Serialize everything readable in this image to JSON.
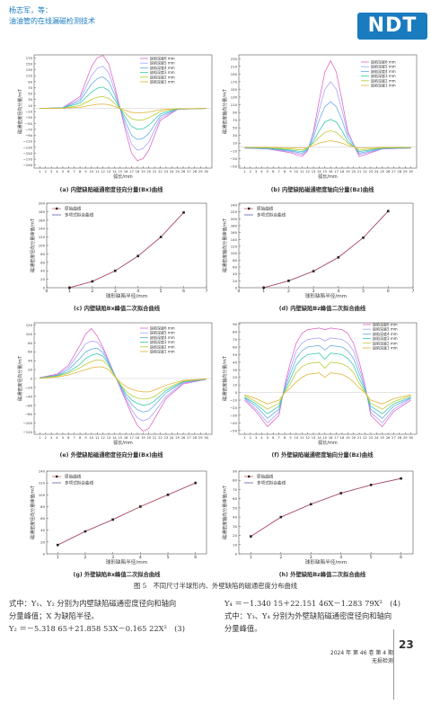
{
  "header": {
    "authors": "杨志军，等：",
    "title": "油油管的在线漏磁检测技术",
    "logo": "NDT"
  },
  "colors": {
    "brand": "#1a7bbf",
    "s6": "#e060c0",
    "s5": "#a49cff",
    "s4": "#5fa8e8",
    "s3": "#2ec8a8",
    "s2": "#b8c82a",
    "s1": "#e0b030",
    "single": "#cc4a4a",
    "fit": "#4444aa"
  },
  "legend_depth": [
    "缺陷深度6 mm",
    "缺陷深度5 mm",
    "缺陷深度4 mm",
    "缺陷深度3 mm",
    "缺陷深度2 mm",
    "缺陷深度1 mm"
  ],
  "legend_fit": [
    "原始曲线",
    "多项式拟合曲线"
  ],
  "panels": {
    "a": {
      "caption": "(a) 内壁缺陷磁通密度径向分量(Bx)曲线",
      "ylabel": "磁通密度径向分量/mT",
      "xlabel": "弧长/mm",
      "yticks": [
        "170",
        "150",
        "130",
        "110",
        "90",
        "70",
        "50",
        "30",
        "10",
        "−10",
        "−30",
        "−50",
        "−70",
        "−90",
        "−110",
        "−130",
        "−150",
        "−170",
        "−190"
      ],
      "xticks": [
        "1",
        "2",
        "3",
        "4",
        "5",
        "6",
        "7",
        "8",
        "9",
        "10",
        "11",
        "12",
        "13",
        "14",
        "15",
        "16",
        "17",
        "18",
        "19",
        "20",
        "21",
        "22",
        "23",
        "24",
        "25",
        "26",
        "27",
        "28",
        "29",
        "30"
      ]
    },
    "b": {
      "caption": "(b) 内壁缺陷磁通密度轴向分量(Bz)曲线",
      "ylabel": "磁通密度轴向分量/mT",
      "xlabel": "弧长/mm",
      "yticks": [
        "230",
        "210",
        "190",
        "170",
        "150",
        "130",
        "110",
        "90",
        "70",
        "50",
        "30",
        "10",
        "−10",
        "−30",
        "−50"
      ],
      "xticks": [
        "1",
        "2",
        "3",
        "4",
        "5",
        "6",
        "7",
        "8",
        "9",
        "10",
        "11",
        "12",
        "13",
        "14",
        "15",
        "16",
        "17",
        "18",
        "19",
        "20",
        "21",
        "22",
        "23",
        "24",
        "25",
        "26",
        "27",
        "28",
        "29",
        "30"
      ]
    },
    "c": {
      "caption": "(c) 内壁缺陷Bx峰值二次拟合曲线",
      "ylabel": "磁通密度径向分量峰值/mT",
      "xlabel": "球形缺陷半径/mm",
      "yticks": [
        "0",
        "20",
        "40",
        "60",
        "80",
        "100",
        "120",
        "140",
        "160",
        "180",
        "200"
      ],
      "xticks": [
        "0",
        "1",
        "2",
        "3",
        "4",
        "5",
        "6",
        "7"
      ]
    },
    "d": {
      "caption": "(d) 内壁缺陷Bz峰值二次拟合曲线",
      "ylabel": "磁通密度轴向分量峰值/mT",
      "xlabel": "球形缺陷半径/mm",
      "yticks": [
        "0",
        "20",
        "40",
        "60",
        "80",
        "100",
        "120",
        "140",
        "160",
        "180",
        "200",
        "220",
        "240"
      ],
      "xticks": [
        "0",
        "1",
        "2",
        "3",
        "4",
        "5",
        "6",
        "7"
      ]
    },
    "e": {
      "caption": "(e) 外壁缺陷磁通密度径向分量(Bx)曲线",
      "ylabel": "磁通密度径向分量/mT",
      "xlabel": "弧长/mm",
      "yticks": [
        "120",
        "100",
        "80",
        "60",
        "40",
        "20",
        "0",
        "−20",
        "−40",
        "−60",
        "−80",
        "−100",
        "−120"
      ],
      "xticks": [
        "1",
        "2",
        "3",
        "4",
        "5",
        "6",
        "7",
        "8",
        "9",
        "10",
        "11",
        "12",
        "13",
        "14",
        "15",
        "16",
        "17",
        "18",
        "19",
        "20",
        "21",
        "22",
        "23",
        "24",
        "25",
        "26",
        "27",
        "28",
        "29",
        "30"
      ]
    },
    "f": {
      "caption": "(f) 外壁缺陷磁通密度轴向分量(Bz)曲线",
      "ylabel": "磁通密度轴向分量/mT",
      "xlabel": "弧长/mm",
      "yticks": [
        "90",
        "80",
        "70",
        "60",
        "50",
        "40",
        "30",
        "20",
        "10",
        "0",
        "−10",
        "−20",
        "−30",
        "−40",
        "−50"
      ],
      "xticks": [
        "1",
        "2",
        "3",
        "4",
        "5",
        "6",
        "7",
        "8",
        "9",
        "10",
        "11",
        "12",
        "13",
        "14",
        "15",
        "16",
        "17",
        "18",
        "19",
        "20",
        "21",
        "22",
        "23",
        "24",
        "25",
        "26",
        "27",
        "28",
        "29",
        "30"
      ]
    },
    "g": {
      "caption": "(g) 外壁缺陷Bx峰值二次拟合曲线",
      "ylabel": "磁通密度径向分量峰值/mT",
      "xlabel": "球形缺陷半径/mm",
      "yticks": [
        "0",
        "20",
        "40",
        "60",
        "80",
        "100",
        "120",
        "140"
      ],
      "xticks": [
        "1",
        "2",
        "3",
        "4",
        "5",
        "6"
      ]
    },
    "h": {
      "caption": "(h) 外壁缺陷Bz峰值二次拟合曲线",
      "ylabel": "磁通密度轴向分量峰值/mT",
      "xlabel": "球形缺陷半径/mm",
      "yticks": [
        "0",
        "10",
        "20",
        "30",
        "40",
        "50",
        "60",
        "70",
        "80",
        "90"
      ],
      "xticks": [
        "1",
        "2",
        "3",
        "4",
        "5",
        "6"
      ]
    }
  },
  "chart_data": [
    {
      "type": "line",
      "x": [
        1,
        5,
        8,
        10,
        11,
        12,
        13,
        14,
        15,
        16,
        17,
        18,
        19,
        20,
        22,
        25,
        30
      ],
      "series": [
        {
          "name": "缺陷深度6 mm",
          "values": [
            0,
            3,
            40,
            140,
            170,
            178,
            150,
            80,
            0,
            -80,
            -150,
            -175,
            -168,
            -140,
            -40,
            -3,
            0
          ]
        },
        {
          "name": "缺陷深度5 mm",
          "values": [
            0,
            3,
            32,
            110,
            135,
            142,
            120,
            64,
            0,
            -64,
            -120,
            -140,
            -134,
            -112,
            -32,
            -3,
            0
          ]
        },
        {
          "name": "缺陷深度4 mm",
          "values": [
            0,
            2,
            25,
            82,
            100,
            106,
            90,
            48,
            0,
            -48,
            -90,
            -104,
            -100,
            -84,
            -25,
            -2,
            0
          ]
        },
        {
          "name": "缺陷深度3 mm",
          "values": [
            0,
            2,
            18,
            55,
            68,
            72,
            60,
            32,
            0,
            -32,
            -60,
            -70,
            -68,
            -56,
            -18,
            -2,
            0
          ]
        },
        {
          "name": "缺陷深度2 mm",
          "values": [
            0,
            1,
            10,
            30,
            38,
            40,
            34,
            18,
            0,
            -18,
            -34,
            -39,
            -38,
            -31,
            -10,
            -1,
            0
          ]
        },
        {
          "name": "缺陷深度1 mm",
          "values": [
            0,
            1,
            4,
            11,
            14,
            15,
            13,
            7,
            0,
            -7,
            -13,
            -15,
            -14,
            -12,
            -4,
            -1,
            0
          ]
        }
      ]
    },
    {
      "type": "line",
      "x": [
        1,
        5,
        9,
        11,
        12,
        13,
        14,
        15,
        16,
        17,
        18,
        19,
        21,
        25,
        30
      ],
      "series": [
        {
          "name": "缺陷深度6 mm",
          "values": [
            -3,
            -5,
            -15,
            -25,
            -10,
            40,
            120,
            195,
            225,
            195,
            120,
            40,
            -25,
            -5,
            -3
          ]
        },
        {
          "name": "缺陷深度5 mm",
          "values": [
            -3,
            -5,
            -12,
            -20,
            -8,
            35,
            95,
            150,
            170,
            150,
            95,
            35,
            -20,
            -5,
            -3
          ]
        },
        {
          "name": "缺陷深度4 mm",
          "values": [
            -2,
            -4,
            -10,
            -16,
            -6,
            25,
            70,
            105,
            118,
            105,
            70,
            25,
            -16,
            -4,
            -2
          ]
        },
        {
          "name": "缺陷深度3 mm",
          "values": [
            -2,
            -3,
            -8,
            -12,
            -4,
            15,
            42,
            65,
            72,
            65,
            42,
            15,
            -12,
            -3,
            -2
          ]
        },
        {
          "name": "缺陷深度2 mm",
          "values": [
            -1,
            -2,
            -5,
            -8,
            -2,
            10,
            25,
            38,
            42,
            38,
            25,
            10,
            -8,
            -2,
            -1
          ]
        },
        {
          "name": "缺陷深度1 mm",
          "values": [
            -1,
            -1,
            -2,
            -3,
            -1,
            4,
            10,
            14,
            16,
            14,
            10,
            4,
            -3,
            -1,
            -1
          ]
        }
      ]
    },
    {
      "type": "line",
      "x": [
        1,
        2,
        3,
        4,
        5,
        6
      ],
      "series": [
        {
          "name": "原始曲线",
          "values": [
            0,
            15,
            40,
            75,
            120,
            178
          ]
        },
        {
          "name": "多项式拟合曲线",
          "values": [
            0,
            15,
            40,
            75,
            120,
            178
          ]
        }
      ]
    },
    {
      "type": "line",
      "x": [
        1,
        2,
        3,
        4,
        5,
        6
      ],
      "series": [
        {
          "name": "原始曲线",
          "values": [
            0,
            20,
            48,
            88,
            145,
            222
          ]
        },
        {
          "name": "多项式拟合曲线",
          "values": [
            0,
            20,
            48,
            88,
            145,
            222
          ]
        }
      ]
    },
    {
      "type": "line",
      "x": [
        1,
        4,
        6,
        8,
        9,
        10,
        11,
        12,
        13,
        14,
        15,
        16,
        17,
        18,
        19,
        20,
        21,
        23,
        26,
        30
      ],
      "series": [
        {
          "name": "缺陷深度6 mm",
          "values": [
            2,
            10,
            30,
            75,
            100,
            112,
            95,
            70,
            40,
            10,
            -20,
            -50,
            -80,
            -105,
            -118,
            -112,
            -90,
            -45,
            -12,
            -2
          ]
        },
        {
          "name": "缺陷深度5 mm",
          "values": [
            2,
            8,
            25,
            60,
            78,
            84,
            82,
            65,
            38,
            10,
            -18,
            -45,
            -70,
            -88,
            -95,
            -90,
            -75,
            -40,
            -10,
            -2
          ]
        },
        {
          "name": "缺陷深度4 mm",
          "values": [
            2,
            7,
            20,
            45,
            60,
            66,
            68,
            58,
            35,
            8,
            -15,
            -40,
            -58,
            -70,
            -75,
            -72,
            -60,
            -32,
            -8,
            -2
          ]
        },
        {
          "name": "缺陷深度3 mm",
          "values": [
            1,
            6,
            15,
            32,
            45,
            52,
            56,
            50,
            32,
            8,
            -14,
            -34,
            -48,
            -56,
            -60,
            -58,
            -50,
            -27,
            -7,
            -1
          ]
        },
        {
          "name": "缺陷深度2 mm",
          "values": [
            1,
            5,
            12,
            24,
            32,
            38,
            42,
            40,
            28,
            7,
            -12,
            -28,
            -38,
            -44,
            -46,
            -45,
            -40,
            -22,
            -6,
            -1
          ]
        },
        {
          "name": "缺陷深度1 mm",
          "values": [
            1,
            3,
            8,
            16,
            20,
            24,
            26,
            26,
            20,
            5,
            -8,
            -18,
            -24,
            -28,
            -30,
            -30,
            -26,
            -15,
            -4,
            -1
          ]
        }
      ]
    },
    {
      "type": "line",
      "x": [
        1,
        3,
        5,
        7,
        8,
        9,
        10,
        11,
        12,
        14,
        15,
        16,
        18,
        19,
        20,
        21,
        22,
        23,
        25,
        27,
        30
      ],
      "series": [
        {
          "name": "缺陷深度6 mm",
          "values": [
            -10,
            -25,
            -45,
            -30,
            10,
            40,
            65,
            78,
            83,
            85,
            83,
            85,
            83,
            78,
            65,
            40,
            10,
            -30,
            -45,
            -25,
            -10
          ]
        },
        {
          "name": "缺陷深度5 mm",
          "values": [
            -8,
            -22,
            -40,
            -26,
            8,
            32,
            55,
            65,
            70,
            72,
            68,
            72,
            70,
            65,
            55,
            32,
            8,
            -26,
            -40,
            -22,
            -8
          ]
        },
        {
          "name": "缺陷深度4 mm",
          "values": [
            -7,
            -18,
            -34,
            -22,
            5,
            25,
            45,
            55,
            60,
            62,
            56,
            62,
            60,
            55,
            45,
            25,
            5,
            -22,
            -34,
            -18,
            -7
          ]
        },
        {
          "name": "缺陷深度3 mm",
          "values": [
            -6,
            -15,
            -28,
            -18,
            3,
            18,
            36,
            45,
            50,
            52,
            44,
            52,
            50,
            45,
            36,
            18,
            3,
            -18,
            -28,
            -15,
            -6
          ]
        },
        {
          "name": "缺陷深度2 mm",
          "values": [
            -4,
            -12,
            -22,
            -14,
            1,
            12,
            26,
            34,
            38,
            40,
            32,
            40,
            38,
            34,
            26,
            12,
            1,
            -14,
            -22,
            -12,
            -4
          ]
        },
        {
          "name": "缺陷深度1 mm",
          "values": [
            -3,
            -8,
            -15,
            -10,
            0,
            6,
            14,
            20,
            24,
            26,
            20,
            26,
            24,
            20,
            14,
            6,
            0,
            -10,
            -15,
            -8,
            -3
          ]
        }
      ]
    },
    {
      "type": "line",
      "x": [
        1,
        2,
        3,
        4,
        5,
        6
      ],
      "series": [
        {
          "name": "原始曲线",
          "values": [
            15,
            38,
            58,
            80,
            100,
            120
          ]
        },
        {
          "name": "多项式拟合曲线",
          "values": [
            15,
            38,
            58,
            80,
            100,
            120
          ]
        }
      ]
    },
    {
      "type": "line",
      "x": [
        1,
        2,
        3,
        4,
        5,
        6
      ],
      "series": [
        {
          "name": "原始曲线",
          "values": [
            19,
            40,
            54,
            66,
            75,
            82
          ]
        },
        {
          "name": "多项式拟合曲线",
          "values": [
            19,
            40,
            54,
            66,
            75,
            82
          ]
        }
      ]
    }
  ],
  "figure_caption": "图 5　不同尺寸半球形内、外壁缺陷的磁通密度分布曲线",
  "left_text": [
    "式中：Y₁、Y₂ 分别为内壁缺陷磁通密度径向和轴向",
    "分量峰值；X 为缺陷半径。",
    "Y₂ ＝－5.318 65＋21.858 53X－0.165 22X²　(3)"
  ],
  "right_text": [
    "Y₄ ＝－1.340 15＋22.151 46X－1.283 79X²　(4)",
    "式中：Y₃、Y₄ 分别为外壁缺陷磁通密度径向和轴向",
    "分量峰值。"
  ],
  "footer": {
    "issue": "2024 年 第 46 卷 第 4 期",
    "journal": "无损检测",
    "page": "23"
  }
}
